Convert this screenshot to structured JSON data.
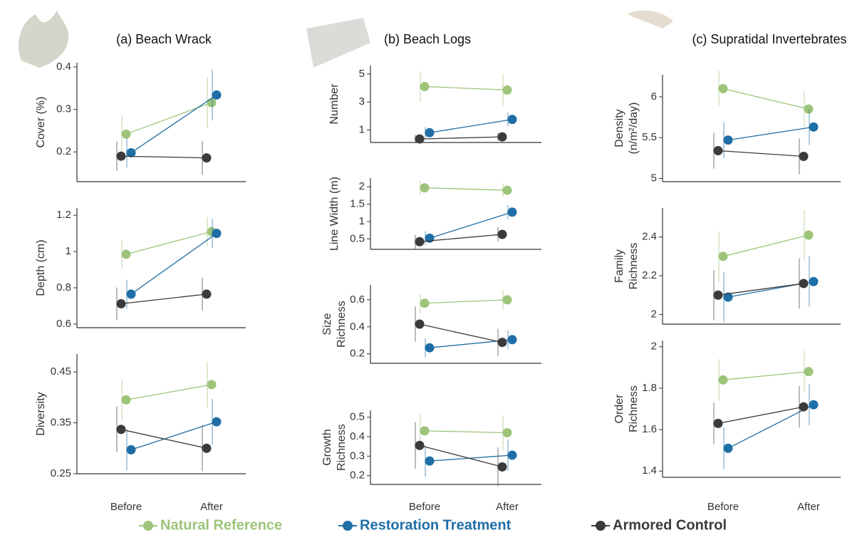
{
  "legend": [
    {
      "name": "Natural Reference",
      "color": "#9dc47a"
    },
    {
      "name": "Restoration Treatment",
      "color": "#1f6ea6"
    },
    {
      "name": "Armored Control",
      "color": "#3b3b3b"
    }
  ],
  "chart_data": [
    {
      "type": "line",
      "title": "(a) Beach Wrack",
      "categories": [
        "Before",
        "After"
      ],
      "panels": [
        {
          "ylabel": [
            "Cover (%)"
          ],
          "ylim": [
            0.13,
            0.41
          ],
          "yticks": [
            0.2,
            0.3,
            0.4
          ],
          "series": [
            {
              "values": [
                0.242,
                0.316
              ],
              "errors": [
                0.045,
                0.06
              ]
            },
            {
              "values": [
                0.198,
                0.334
              ],
              "errors": [
                0.035,
                0.06
              ]
            },
            {
              "values": [
                0.19,
                0.186
              ],
              "errors": [
                0.035,
                0.04
              ]
            }
          ]
        },
        {
          "ylabel": [
            "Depth (cm)"
          ],
          "ylim": [
            0.58,
            1.24
          ],
          "yticks": [
            0.6,
            0.8,
            1.0,
            1.2
          ],
          "series": [
            {
              "values": [
                0.985,
                1.11
              ],
              "errors": [
                0.08,
                0.08
              ]
            },
            {
              "values": [
                0.765,
                1.1
              ],
              "errors": [
                0.08,
                0.08
              ]
            },
            {
              "values": [
                0.712,
                0.765
              ],
              "errors": [
                0.09,
                0.09
              ]
            }
          ]
        },
        {
          "ylabel": [
            "Diversity"
          ],
          "ylim": [
            0.25,
            0.485
          ],
          "yticks": [
            0.25,
            0.35,
            0.45
          ],
          "series": [
            {
              "values": [
                0.395,
                0.425
              ],
              "errors": [
                0.04,
                0.045
              ]
            },
            {
              "values": [
                0.297,
                0.352
              ],
              "errors": [
                0.04,
                0.045
              ]
            },
            {
              "values": [
                0.337,
                0.3
              ],
              "errors": [
                0.045,
                0.045
              ]
            }
          ]
        }
      ]
    },
    {
      "type": "line",
      "title": "(b) Beach Logs",
      "categories": [
        "Before",
        "After"
      ],
      "panels": [
        {
          "ylabel": [
            "Number"
          ],
          "ylim": [
            0.1,
            5.6
          ],
          "yticks": [
            1,
            3,
            5
          ],
          "series": [
            {
              "values": [
                4.1,
                3.85
              ],
              "errors": [
                1.1,
                1.1
              ]
            },
            {
              "values": [
                0.8,
                1.75
              ],
              "errors": [
                0.4,
                0.5
              ]
            },
            {
              "values": [
                0.35,
                0.5
              ],
              "errors": [
                0.3,
                0.3
              ]
            }
          ]
        },
        {
          "ylabel": [
            "Line Width (m)"
          ],
          "ylim": [
            0.2,
            2.25
          ],
          "yticks": [
            0.5,
            1.0,
            1.5,
            2.0
          ],
          "series": [
            {
              "values": [
                1.97,
                1.9
              ],
              "errors": [
                0.2,
                0.2
              ]
            },
            {
              "values": [
                0.52,
                1.27
              ],
              "errors": [
                0.2,
                0.2
              ]
            },
            {
              "values": [
                0.42,
                0.63
              ],
              "errors": [
                0.2,
                0.2
              ]
            }
          ]
        },
        {
          "ylabel": [
            "Size",
            "Richness"
          ],
          "ylim": [
            0.13,
            0.71
          ],
          "yticks": [
            0.2,
            0.4,
            0.6
          ],
          "series": [
            {
              "values": [
                0.575,
                0.6
              ],
              "errors": [
                0.07,
                0.07
              ]
            },
            {
              "values": [
                0.245,
                0.305
              ],
              "errors": [
                0.07,
                0.07
              ]
            },
            {
              "values": [
                0.42,
                0.285
              ],
              "errors": [
                0.13,
                0.1
              ]
            }
          ]
        },
        {
          "ylabel": [
            "Growth",
            "Richness"
          ],
          "ylim": [
            0.155,
            0.535
          ],
          "yticks": [
            0.2,
            0.3,
            0.4,
            0.5
          ],
          "series": [
            {
              "values": [
                0.43,
                0.42
              ],
              "errors": [
                0.09,
                0.09
              ]
            },
            {
              "values": [
                0.275,
                0.305
              ],
              "errors": [
                0.08,
                0.08
              ]
            },
            {
              "values": [
                0.355,
                0.245
              ],
              "errors": [
                0.12,
                0.1
              ]
            }
          ]
        }
      ]
    },
    {
      "type": "line",
      "title": "(c) Supratidal Invertebrates",
      "categories": [
        "Before",
        "After"
      ],
      "panels": [
        {
          "ylabel": [
            "Density",
            "(n/m²/day)"
          ],
          "ylim": [
            4.96,
            6.27
          ],
          "yticks": [
            5.0,
            5.5,
            6.0
          ],
          "series": [
            {
              "values": [
                6.1,
                5.85
              ],
              "errors": [
                0.22,
                0.22
              ]
            },
            {
              "values": [
                5.47,
                5.63
              ],
              "errors": [
                0.22,
                0.22
              ]
            },
            {
              "values": [
                5.34,
                5.27
              ],
              "errors": [
                0.22,
                0.22
              ]
            }
          ]
        },
        {
          "ylabel": [
            "Family",
            "Richness"
          ],
          "ylim": [
            1.95,
            2.55
          ],
          "yticks": [
            2.0,
            2.2,
            2.4
          ],
          "series": [
            {
              "values": [
                2.3,
                2.41
              ],
              "errors": [
                0.13,
                0.13
              ]
            },
            {
              "values": [
                2.09,
                2.17
              ],
              "errors": [
                0.13,
                0.13
              ]
            },
            {
              "values": [
                2.1,
                2.16
              ],
              "errors": [
                0.13,
                0.13
              ]
            }
          ]
        },
        {
          "ylabel": [
            "Order",
            "Richness"
          ],
          "ylim": [
            1.37,
            2.03
          ],
          "yticks": [
            1.4,
            1.6,
            1.8,
            2.0
          ],
          "series": [
            {
              "values": [
                1.84,
                1.88
              ],
              "errors": [
                0.1,
                0.1
              ]
            },
            {
              "values": [
                1.51,
                1.72
              ],
              "errors": [
                0.1,
                0.1
              ]
            },
            {
              "values": [
                1.63,
                1.71
              ],
              "errors": [
                0.1,
                0.1
              ]
            }
          ]
        }
      ]
    }
  ]
}
